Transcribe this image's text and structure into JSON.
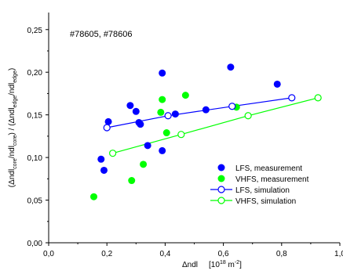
{
  "chart_data": {
    "type": "scatter",
    "annotation": "#78605, #78606",
    "xlabel": {
      "prefix": "Δndl",
      "unit_prefix": "[10",
      "unit_exp": "18",
      "unit_mid": " m",
      "unit_exp2": "-2",
      "unit_suffix": "]"
    },
    "ylabel": {
      "parts": [
        {
          "t": "(Δndl",
          "s": "n"
        },
        {
          "t": "core",
          "s": "sub"
        },
        {
          "t": "/ndl",
          "s": "n"
        },
        {
          "t": "core",
          "s": "sub"
        },
        {
          "t": ") / (Δndl",
          "s": "n"
        },
        {
          "t": "edge",
          "s": "sub"
        },
        {
          "t": "/ndl",
          "s": "n"
        },
        {
          "t": "edge",
          "s": "sub"
        },
        {
          "t": ")",
          "s": "n"
        }
      ]
    },
    "xlim": [
      0.0,
      1.0
    ],
    "ylim": [
      0.0,
      0.27
    ],
    "xticks": [
      0.0,
      0.2,
      0.4,
      0.6,
      0.8,
      1.0
    ],
    "xtick_labels": [
      "0,0",
      "0,2",
      "0,4",
      "0,6",
      "0,8",
      "1,0"
    ],
    "yticks": [
      0.0,
      0.05,
      0.1,
      0.15,
      0.2,
      0.25
    ],
    "ytick_labels": [
      "0,00",
      "0,05",
      "0,10",
      "0,15",
      "0,20",
      "0,25"
    ],
    "grid": false,
    "legend_position": "bottom-right",
    "series": [
      {
        "name": "LFS, measurement",
        "kind": "markers",
        "color": "#0000ff",
        "marker": "filled-circle",
        "x": [
          0.18,
          0.19,
          0.205,
          0.28,
          0.3,
          0.31,
          0.315,
          0.34,
          0.39,
          0.39,
          0.435,
          0.54,
          0.625,
          0.785
        ],
        "y": [
          0.098,
          0.085,
          0.142,
          0.161,
          0.154,
          0.141,
          0.139,
          0.114,
          0.199,
          0.108,
          0.151,
          0.156,
          0.206,
          0.186
        ]
      },
      {
        "name": "VHFS, measurement",
        "kind": "markers",
        "color": "#00ff00",
        "marker": "filled-circle",
        "x": [
          0.155,
          0.285,
          0.325,
          0.385,
          0.39,
          0.405,
          0.47,
          0.645
        ],
        "y": [
          0.054,
          0.073,
          0.092,
          0.153,
          0.168,
          0.129,
          0.173,
          0.159
        ]
      },
      {
        "name": "LFS, simulation",
        "kind": "line-open",
        "color": "#0000ff",
        "marker": "open-circle",
        "x": [
          0.2,
          0.41,
          0.63,
          0.835
        ],
        "y": [
          0.135,
          0.149,
          0.16,
          0.17
        ]
      },
      {
        "name": "VHFS, simulation",
        "kind": "line-open",
        "color": "#00ff00",
        "marker": "open-circle",
        "x": [
          0.22,
          0.455,
          0.685,
          0.925
        ],
        "y": [
          0.105,
          0.127,
          0.149,
          0.17
        ]
      }
    ]
  }
}
